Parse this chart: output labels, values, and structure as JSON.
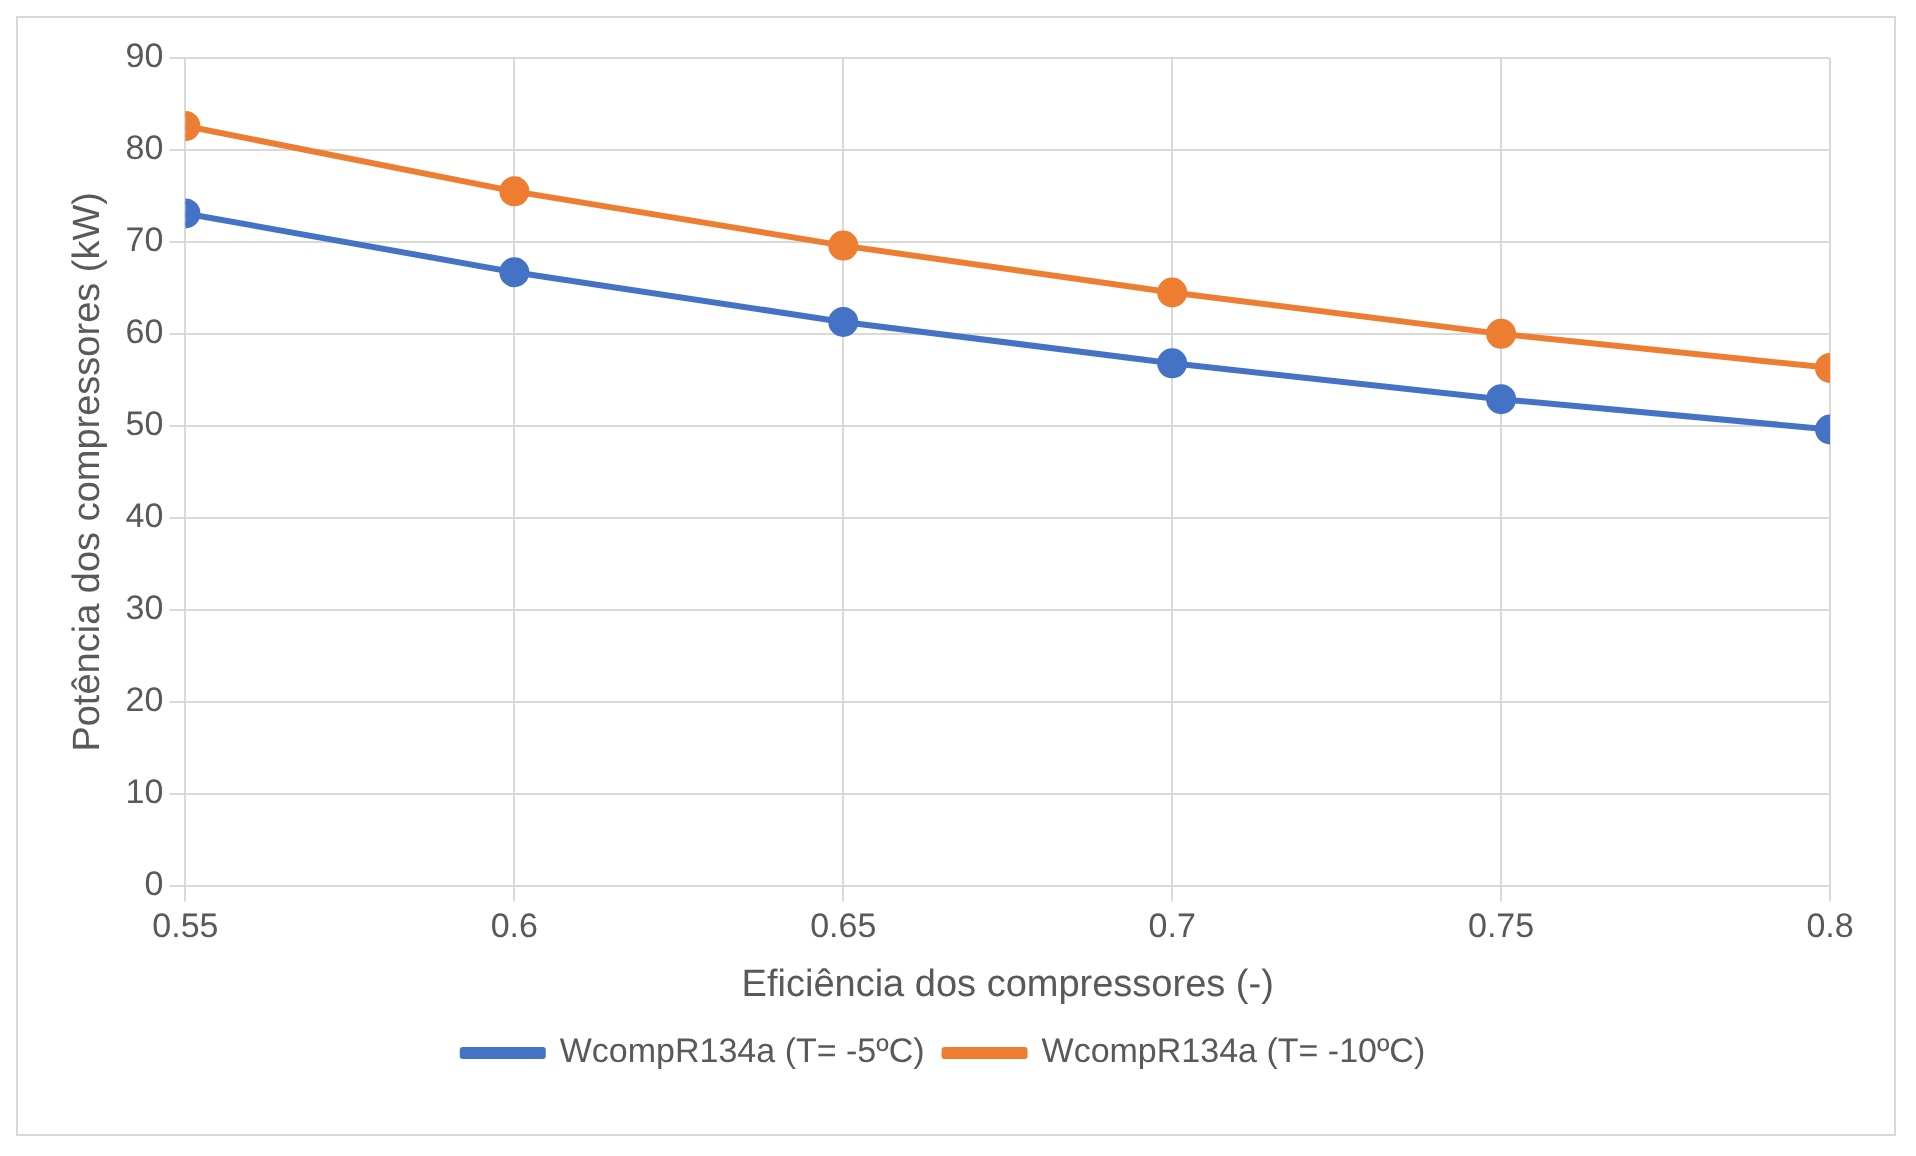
{
  "chart_data": {
    "type": "line",
    "xlabel": "Eficiência dos compressores (-)",
    "ylabel": "Potência dos compressores (kW)",
    "x": [
      0.55,
      0.6,
      0.65,
      0.7,
      0.75,
      0.8
    ],
    "series": [
      {
        "name": "WcompR134a (T= -5ºC)",
        "color": "#4472c4",
        "values": [
          73.1,
          66.7,
          61.3,
          56.8,
          52.9,
          49.6
        ]
      },
      {
        "name": "WcompR134a (T= -10ºC)",
        "color": "#ed7d31",
        "values": [
          82.6,
          75.5,
          69.6,
          64.5,
          60.0,
          56.3
        ]
      }
    ],
    "xlim": [
      0.55,
      0.8
    ],
    "xticks": [
      0.55,
      0.6,
      0.65,
      0.7,
      0.75,
      0.8
    ],
    "ylim": [
      0,
      90
    ],
    "yticks": [
      0,
      10,
      20,
      30,
      40,
      50,
      60,
      70,
      80,
      90
    ],
    "grid": true,
    "legend": "bottom",
    "marker": "circle",
    "line_style": "solid"
  }
}
